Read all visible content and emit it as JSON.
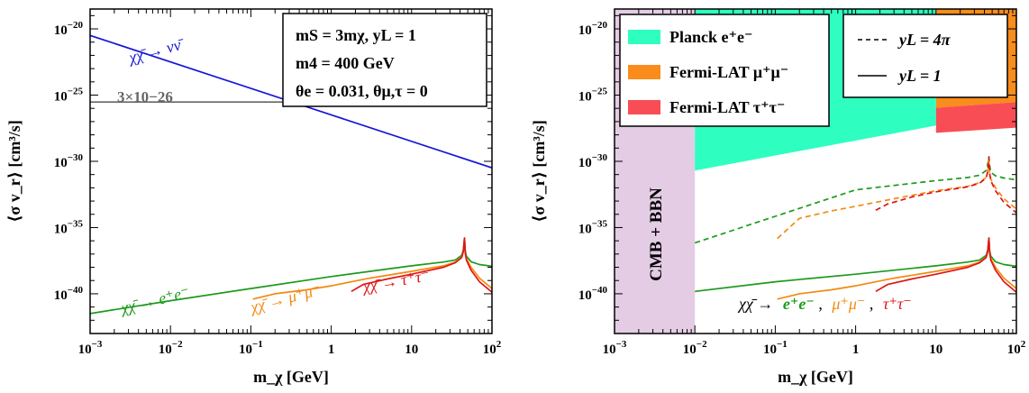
{
  "chart_data": [
    {
      "type": "line",
      "xscale": "log",
      "yscale": "log",
      "xlim": [
        0.001,
        100
      ],
      "ylim": [
        1e-43,
        3.16e-19
      ],
      "xlabel": "m_χ [GeV]",
      "ylabel": "⟨σ v_r⟩ [cm³/s]",
      "x_ticks": [
        {
          "v": 0.001,
          "base": "10",
          "exp": "−3"
        },
        {
          "v": 0.01,
          "base": "10",
          "exp": "−2"
        },
        {
          "v": 0.1,
          "base": "10",
          "exp": "−1"
        },
        {
          "v": 1,
          "base": "1",
          "exp": ""
        },
        {
          "v": 10,
          "base": "10",
          "exp": ""
        },
        {
          "v": 100,
          "base": "10",
          "exp": "2"
        }
      ],
      "y_ticks": [
        {
          "v": 1e-40,
          "base": "10",
          "exp": "−40"
        },
        {
          "v": 1e-35,
          "base": "10",
          "exp": "−35"
        },
        {
          "v": 1e-30,
          "base": "10",
          "exp": "−30"
        },
        {
          "v": 1e-25,
          "base": "10",
          "exp": "−25"
        },
        {
          "v": 1e-20,
          "base": "10",
          "exp": "−20"
        }
      ],
      "info_box": {
        "line1": "mS = 3mχ, yL = 1",
        "line2": "m4 = 400 GeV",
        "line3": "θe = 0.031, θμ,τ = 0"
      },
      "reference_line": {
        "value": 3e-26,
        "label": "3×10−26",
        "color": "#666666"
      },
      "series": [
        {
          "name": "χχ̄ → νν̄",
          "color": "#1515d8",
          "x": [
            0.001,
            100
          ],
          "y": [
            3.2e-21,
            3.2e-31
          ]
        },
        {
          "name": "χχ̄ → e⁺e⁻",
          "color": "#1c9a1c",
          "x": [
            0.001,
            0.01,
            0.1,
            1,
            10,
            25,
            35,
            42,
            44,
            45.5,
            46.5,
            48,
            55,
            70,
            100
          ],
          "y": [
            3.2e-42,
            3e-41,
            2.5e-40,
            2e-39,
            1.3e-38,
            2.5e-38,
            3.6e-38,
            8e-38,
            2e-37,
            1.6e-36,
            2e-37,
            7e-38,
            2.6e-38,
            1.6e-38,
            1.2e-38
          ]
        },
        {
          "name": "χχ̄ → μ⁺μ⁻",
          "color": "#f28a10",
          "x": [
            0.106,
            0.2,
            0.5,
            1,
            3,
            10,
            25,
            35,
            42,
            44,
            45.5,
            46.5,
            48,
            55,
            70,
            100
          ],
          "y": [
            4e-41,
            1e-40,
            2e-40,
            4e-40,
            1.5e-39,
            5e-39,
            1.3e-38,
            2.5e-38,
            6e-38,
            1.6e-37,
            1.6e-36,
            1.5e-37,
            4.5e-38,
            1e-38,
            1.5e-39,
            2.5e-40
          ]
        },
        {
          "name": "χχ̄ → τ⁺τ⁻",
          "color": "#e01515",
          "x": [
            1.78,
            2.5,
            5,
            10,
            25,
            35,
            42,
            44,
            45.5,
            46.5,
            48,
            55,
            70,
            100
          ],
          "y": [
            1.5e-40,
            5e-40,
            1.3e-39,
            3e-39,
            1e-38,
            2.2e-38,
            5.5e-38,
            1.5e-37,
            1.6e-36,
            1.3e-37,
            3.5e-38,
            6e-39,
            8e-40,
            1.3e-40
          ]
        }
      ],
      "labels": {
        "nu": "χχ̄ → νν̄",
        "e": "χχ̄ → e⁺e⁻",
        "mu": "χχ̄ → μ⁺μ⁻",
        "tau": "χχ̄ → τ⁺τ⁻"
      }
    },
    {
      "type": "line",
      "xscale": "log",
      "yscale": "log",
      "xlim": [
        0.001,
        100
      ],
      "ylim": [
        1e-43,
        3.16e-19
      ],
      "xlabel": "m_χ [GeV]",
      "ylabel": "⟨σ v_r⟩ [cm³/s]",
      "x_ticks": [
        {
          "v": 0.001,
          "base": "10",
          "exp": "−3"
        },
        {
          "v": 0.01,
          "base": "10",
          "exp": "−2"
        },
        {
          "v": 0.1,
          "base": "10",
          "exp": "−1"
        },
        {
          "v": 1,
          "base": "1",
          "exp": ""
        },
        {
          "v": 10,
          "base": "10",
          "exp": ""
        },
        {
          "v": 100,
          "base": "10",
          "exp": "2"
        }
      ],
      "y_ticks": [
        {
          "v": 1e-40,
          "base": "10",
          "exp": "−40"
        },
        {
          "v": 1e-35,
          "base": "10",
          "exp": "−35"
        },
        {
          "v": 1e-30,
          "base": "10",
          "exp": "−30"
        },
        {
          "v": 1e-25,
          "base": "10",
          "exp": "−25"
        },
        {
          "v": 1e-20,
          "base": "10",
          "exp": "−20"
        }
      ],
      "excluded_regions": [
        {
          "name": "CMB + BBN",
          "color": "#e4cce4",
          "x": [
            0.001,
            0.01
          ]
        },
        {
          "name": "Planck e⁺e⁻",
          "color": "#2effc0",
          "x": [
            0.01,
            10
          ],
          "y_lower": [
            2e-31,
            5e-28
          ]
        },
        {
          "name": "Fermi-LAT μ⁺μ⁻",
          "color": "#fa8c1c",
          "x": [
            10,
            100
          ],
          "y_lower": [
            1.1e-26,
            3e-26
          ]
        },
        {
          "name": "Fermi-LAT τ⁺τ⁻",
          "color": "#f84d55",
          "x": [
            10,
            100
          ],
          "y_lower": [
            1.4e-28,
            3.5e-28
          ],
          "y_upper": [
            1.1e-26,
            3e-26
          ]
        }
      ],
      "legend_regions": [
        {
          "label": "Planck e⁺e⁻",
          "color": "#2effc0"
        },
        {
          "label": "Fermi-LAT μ⁺μ⁻",
          "color": "#fa8c1c"
        },
        {
          "label": "Fermi-LAT τ⁺τ⁻",
          "color": "#f84d55"
        }
      ],
      "legend_styles": [
        {
          "label": "yL = 4π",
          "dash": true
        },
        {
          "label": "yL = 1",
          "dash": false
        }
      ],
      "series": [
        {
          "name": "e⁺e⁻ (yL = 4π)",
          "color": "#1c9a1c",
          "dash": true,
          "x": [
            0.01,
            0.1,
            1,
            10,
            25,
            35,
            42,
            44,
            45.5,
            46.5,
            48,
            55,
            70,
            100
          ],
          "y": [
            7e-37,
            7e-35,
            7e-33,
            3.5e-32,
            6e-32,
            9e-32,
            2e-31,
            6e-31,
            2.2e-30,
            5e-31,
            1.5e-31,
            8e-32,
            5.5e-32,
            4e-32
          ]
        },
        {
          "name": "μ⁺μ⁻ (yL = 4π)",
          "color": "#f28a10",
          "dash": true,
          "x": [
            0.106,
            0.2,
            0.5,
            1,
            3,
            10,
            25,
            35,
            42,
            44,
            45.5,
            46.5,
            48,
            55,
            70,
            100
          ],
          "y": [
            1.5e-36,
            5e-35,
            1.8e-34,
            4e-34,
            1.5e-33,
            6e-33,
            1.3e-32,
            2.5e-32,
            6e-32,
            1.8e-31,
            2e-30,
            1.5e-31,
            4.5e-32,
            1e-32,
            1.5e-33,
            2.5e-34
          ]
        },
        {
          "name": "τ⁺τ⁻ (yL = 4π)",
          "color": "#e01515",
          "dash": true,
          "x": [
            1.78,
            2.5,
            5,
            10,
            25,
            35,
            42,
            44,
            45.5,
            46.5,
            48,
            55,
            70,
            100
          ],
          "y": [
            2e-34,
            6e-34,
            2e-33,
            5e-33,
            1.2e-32,
            2.3e-32,
            5.5e-32,
            1.6e-31,
            2e-30,
            1.3e-31,
            3.5e-32,
            6e-33,
            8e-34,
            1.3e-34
          ]
        },
        {
          "name": "e⁺e⁻ (yL = 1)",
          "color": "#1c9a1c",
          "dash": false,
          "x": [
            0.01,
            0.1,
            1,
            10,
            25,
            35,
            42,
            44,
            45.5,
            46.5,
            48,
            55,
            70,
            100
          ],
          "y": [
            1.5e-40,
            8e-40,
            3e-39,
            1.3e-38,
            2.5e-38,
            3.6e-38,
            8e-38,
            2e-37,
            1.6e-36,
            2e-37,
            7e-38,
            2.6e-38,
            1.6e-38,
            1.2e-38
          ]
        },
        {
          "name": "μ⁺μ⁻ (yL = 1)",
          "color": "#f28a10",
          "dash": false,
          "x": [
            0.106,
            0.2,
            0.5,
            1,
            3,
            10,
            25,
            35,
            42,
            44,
            45.5,
            46.5,
            48,
            55,
            70,
            100
          ],
          "y": [
            4e-41,
            1e-40,
            2e-40,
            4e-40,
            1.5e-39,
            5e-39,
            1.3e-38,
            2.5e-38,
            6e-38,
            1.6e-37,
            1.6e-36,
            1.5e-37,
            4.5e-38,
            1e-38,
            1.5e-39,
            2.5e-40
          ]
        },
        {
          "name": "τ⁺τ⁻ (yL = 1)",
          "color": "#e01515",
          "dash": false,
          "x": [
            1.78,
            2.5,
            5,
            10,
            25,
            35,
            42,
            44,
            45.5,
            46.5,
            48,
            55,
            70,
            100
          ],
          "y": [
            1.5e-40,
            5e-40,
            1.3e-39,
            3e-39,
            1e-38,
            2.2e-38,
            5.5e-38,
            1.5e-37,
            1.6e-36,
            1.3e-37,
            3.5e-38,
            6e-39,
            8e-40,
            1.3e-40
          ]
        }
      ],
      "channel_label": {
        "prefix": "χχ̄ →",
        "e": "e⁺e⁻",
        "mu": "μ⁺μ⁻",
        "tau": "τ⁺τ⁻",
        "sep": ","
      }
    }
  ]
}
